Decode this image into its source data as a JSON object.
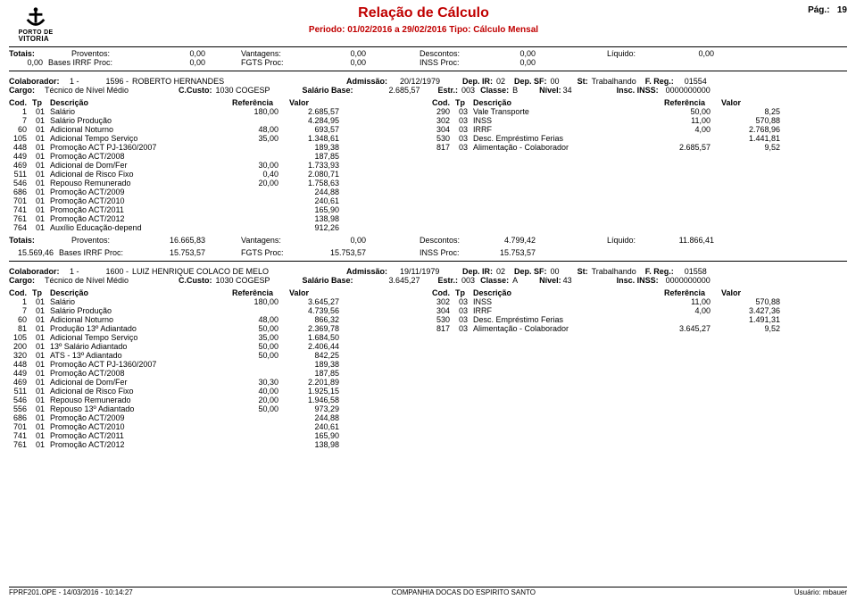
{
  "page": {
    "title": "Relação de Cálculo",
    "pag_label": "Pág.:",
    "pag_no": "19"
  },
  "period": {
    "line": "Periodo: 01/02/2016 a 29/02/2016    Tipo: Cálculo Mensal"
  },
  "top_totals": {
    "totais": "Totais:",
    "proventos_l": "Proventos:",
    "proventos_v": "0,00",
    "vantagens_l": "Vantagens:",
    "vantagens_v": "0,00",
    "descontos_l": "Descontos:",
    "descontos_v": "0,00",
    "liquido_l": "Líquido:",
    "liquido_v": "0,00",
    "l2_pre": "0,00",
    "bases_l": "Bases IRRF Proc:",
    "bases_v": "0,00",
    "fgts_l": "FGTS Proc:",
    "fgts_v": "0,00",
    "inss_l": "INSS Proc:",
    "inss_v": "0,00"
  },
  "emp1": {
    "colab_l": "Colaborador:",
    "colab_no": "1 -",
    "colab_code": "1596 -",
    "colab_name": "ROBERTO HERNANDES",
    "adm_l": "Admissão:",
    "adm_v": "20/12/1979",
    "depir_l": "Dep. IR:",
    "depir_v": "02",
    "depsf_l": "Dep. SF:",
    "depsf_v": "00",
    "st_l": "St:",
    "st_v": "Trabalhando",
    "freg_l": "F. Reg.:",
    "freg_v": "01554",
    "cargo_l": "Cargo:",
    "cargo_v": "Técnico de Nível Médio",
    "custo_l": "C.Custo:",
    "custo_v": "1030  COGESP",
    "salbase_l": "Salário Base:",
    "salbase_v": "2.685,57",
    "estr_l": "Estr.:",
    "estr_v": "003",
    "classe_l": "Classe:",
    "classe_v": "B",
    "nivel_l": "Nível:",
    "nivel_v": "34",
    "inscinss_l": "Insc. INSS:",
    "inscinss_v": "0000000000"
  },
  "headers": {
    "cod": "Cod.",
    "tp": "Tp",
    "desc": "Descrição",
    "ref": "Referência",
    "val": "Valor"
  },
  "emp1_left": [
    {
      "cod": "1",
      "tp": "01",
      "desc": "Salário",
      "ref": "180,00",
      "val": "2.685,57"
    },
    {
      "cod": "7",
      "tp": "01",
      "desc": "Salário Produção",
      "ref": "",
      "val": "4.284,95"
    },
    {
      "cod": "60",
      "tp": "01",
      "desc": "Adicional Noturno",
      "ref": "48,00",
      "val": "693,57"
    },
    {
      "cod": "105",
      "tp": "01",
      "desc": "Adicional Tempo Serviço",
      "ref": "35,00",
      "val": "1.348,61"
    },
    {
      "cod": "448",
      "tp": "01",
      "desc": "Promoção ACT PJ-1360/2007",
      "ref": "",
      "val": "189,38"
    },
    {
      "cod": "449",
      "tp": "01",
      "desc": "Promoção ACT/2008",
      "ref": "",
      "val": "187,85"
    },
    {
      "cod": "469",
      "tp": "01",
      "desc": "Adicional de Dom/Fer",
      "ref": "30,00",
      "val": "1.733,93"
    },
    {
      "cod": "511",
      "tp": "01",
      "desc": "Adicional de Risco Fixo",
      "ref": "0,40",
      "val": "2.080,71"
    },
    {
      "cod": "546",
      "tp": "01",
      "desc": "Repouso Remunerado",
      "ref": "20,00",
      "val": "1.758,63"
    },
    {
      "cod": "686",
      "tp": "01",
      "desc": "Promoção ACT/2009",
      "ref": "",
      "val": "244,88"
    },
    {
      "cod": "701",
      "tp": "01",
      "desc": "Promoção ACT/2010",
      "ref": "",
      "val": "240,61"
    },
    {
      "cod": "741",
      "tp": "01",
      "desc": "Promoção ACT/2011",
      "ref": "",
      "val": "165,90"
    },
    {
      "cod": "761",
      "tp": "01",
      "desc": "Promoção ACT/2012",
      "ref": "",
      "val": "138,98"
    },
    {
      "cod": "764",
      "tp": "01",
      "desc": "Auxílio Educação-depend",
      "ref": "",
      "val": "912,26"
    }
  ],
  "emp1_right": [
    {
      "cod": "290",
      "tp": "03",
      "desc": "Vale Transporte",
      "ref": "50,00",
      "val": "8,25"
    },
    {
      "cod": "302",
      "tp": "03",
      "desc": "INSS",
      "ref": "11,00",
      "val": "570,88"
    },
    {
      "cod": "304",
      "tp": "03",
      "desc": "IRRF",
      "ref": "4,00",
      "val": "2.768,96"
    },
    {
      "cod": "530",
      "tp": "03",
      "desc": "Desc. Empréstimo Ferias",
      "ref": "",
      "val": "1.441,81"
    },
    {
      "cod": "817",
      "tp": "03",
      "desc": "Alimentação - Colaborador",
      "ref": "2.685,57",
      "val": "9,52"
    }
  ],
  "emp1_totals": {
    "totais": "Totais:",
    "prov_l": "Proventos:",
    "prov_v": "16.665,83",
    "vant_l": "Vantagens:",
    "vant_v": "0,00",
    "desc_l": "Descontos:",
    "desc_v": "4.799,42",
    "liq_l": "Líquido:",
    "liq_v": "11.866,41",
    "l2_pre": "15.569,46",
    "bases_l": "Bases IRRF Proc:",
    "bases_v": "15.753,57",
    "fgts_l": "FGTS Proc:",
    "fgts_v": "15.753,57",
    "inss_l": "INSS Proc:",
    "inss_v": "15.753,57"
  },
  "emp2": {
    "colab_l": "Colaborador:",
    "colab_no": "1 -",
    "colab_code": "1600 -",
    "colab_name": "LUIZ HENRIQUE COLACO DE MELO",
    "adm_l": "Admissão:",
    "adm_v": "19/11/1979",
    "depir_l": "Dep. IR:",
    "depir_v": "02",
    "depsf_l": "Dep. SF:",
    "depsf_v": "00",
    "st_l": "St:",
    "st_v": "Trabalhando",
    "freg_l": "F. Reg.:",
    "freg_v": "01558",
    "cargo_l": "Cargo:",
    "cargo_v": "Técnico de Nível Médio",
    "custo_l": "C.Custo:",
    "custo_v": "1030  COGESP",
    "salbase_l": "Salário Base:",
    "salbase_v": "3.645,27",
    "estr_l": "Estr.:",
    "estr_v": "003",
    "classe_l": "Classe:",
    "classe_v": "A",
    "nivel_l": "Nível:",
    "nivel_v": "43",
    "inscinss_l": "Insc. INSS:",
    "inscinss_v": "0000000000"
  },
  "emp2_left": [
    {
      "cod": "1",
      "tp": "01",
      "desc": "Salário",
      "ref": "180,00",
      "val": "3.645,27"
    },
    {
      "cod": "7",
      "tp": "01",
      "desc": "Salário Produção",
      "ref": "",
      "val": "4.739,56"
    },
    {
      "cod": "60",
      "tp": "01",
      "desc": "Adicional Noturno",
      "ref": "48,00",
      "val": "866,32"
    },
    {
      "cod": "81",
      "tp": "01",
      "desc": "Produção 13º Adiantado",
      "ref": "50,00",
      "val": "2.369,78"
    },
    {
      "cod": "105",
      "tp": "01",
      "desc": "Adicional Tempo Serviço",
      "ref": "35,00",
      "val": "1.684,50"
    },
    {
      "cod": "200",
      "tp": "01",
      "desc": "13º Salário Adiantado",
      "ref": "50,00",
      "val": "2.406,44"
    },
    {
      "cod": "320",
      "tp": "01",
      "desc": "ATS - 13º Adiantado",
      "ref": "50,00",
      "val": "842,25"
    },
    {
      "cod": "448",
      "tp": "01",
      "desc": "Promoção ACT PJ-1360/2007",
      "ref": "",
      "val": "189,38"
    },
    {
      "cod": "449",
      "tp": "01",
      "desc": "Promoção ACT/2008",
      "ref": "",
      "val": "187,85"
    },
    {
      "cod": "469",
      "tp": "01",
      "desc": "Adicional de Dom/Fer",
      "ref": "30,30",
      "val": "2.201,89"
    },
    {
      "cod": "511",
      "tp": "01",
      "desc": "Adicional de Risco Fixo",
      "ref": "40,00",
      "val": "1.925,15"
    },
    {
      "cod": "546",
      "tp": "01",
      "desc": "Repouso Remunerado",
      "ref": "20,00",
      "val": "1.946,58"
    },
    {
      "cod": "556",
      "tp": "01",
      "desc": "Repouso 13º Adiantado",
      "ref": "50,00",
      "val": "973,29"
    },
    {
      "cod": "686",
      "tp": "01",
      "desc": "Promoção ACT/2009",
      "ref": "",
      "val": "244,88"
    },
    {
      "cod": "701",
      "tp": "01",
      "desc": "Promoção ACT/2010",
      "ref": "",
      "val": "240,61"
    },
    {
      "cod": "741",
      "tp": "01",
      "desc": "Promoção ACT/2011",
      "ref": "",
      "val": "165,90"
    },
    {
      "cod": "761",
      "tp": "01",
      "desc": "Promoção ACT/2012",
      "ref": "",
      "val": "138,98"
    }
  ],
  "emp2_right": [
    {
      "cod": "302",
      "tp": "03",
      "desc": "INSS",
      "ref": "11,00",
      "val": "570,88"
    },
    {
      "cod": "304",
      "tp": "03",
      "desc": "IRRF",
      "ref": "4,00",
      "val": "3.427,36"
    },
    {
      "cod": "530",
      "tp": "03",
      "desc": "Desc. Empréstimo Ferias",
      "ref": "",
      "val": "1.491,31"
    },
    {
      "cod": "817",
      "tp": "03",
      "desc": "Alimentação - Colaborador",
      "ref": "3.645,27",
      "val": "9,52"
    }
  ],
  "footer": {
    "left": "FPRF201.OPE  -  14/03/2016  -  10:14:27",
    "center": "COMPANHIA DOCAS DO ESPIRITO SANTO",
    "right_l": "Usuário:",
    "right_v": "mbauer"
  }
}
